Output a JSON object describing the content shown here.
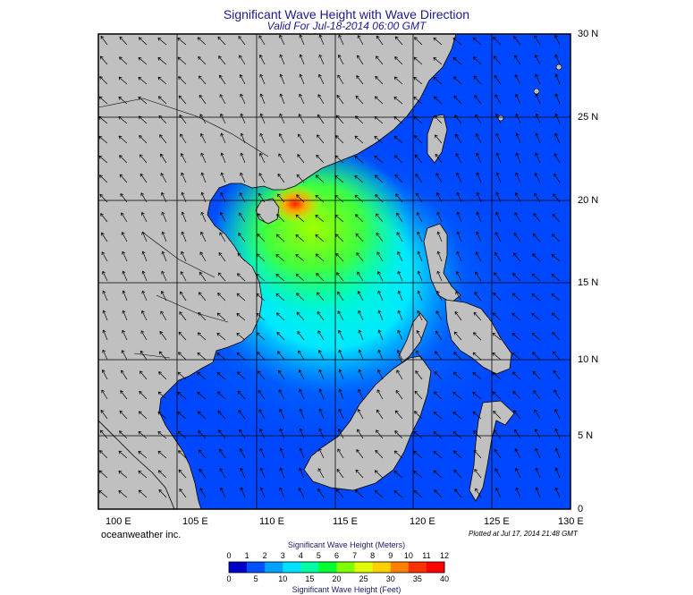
{
  "title": "Significant Wave Height with Wave Direction",
  "subtitle": "Valid For Jul-18-2014 06:00 GMT",
  "lon_labels": [
    "100 E",
    "105 E",
    "110 E",
    "115 E",
    "120 E",
    "125 E",
    "130 E"
  ],
  "lat_labels": [
    "30 N",
    "25 N",
    "20 N",
    "15 N",
    "10 N",
    "5 N",
    "0"
  ],
  "brand": "oceanweather inc.",
  "plotted": "Plotted at Jul 17, 2014 21:48 GMT",
  "colorbar": {
    "meters_title": "Significant Wave Height (Meters)",
    "feet_title": "Significant Wave Height (Feet)",
    "meters_ticks": [
      "0",
      "1",
      "2",
      "3",
      "4",
      "5",
      "6",
      "7",
      "8",
      "9",
      "10",
      "11",
      "12"
    ],
    "feet_ticks": [
      "0",
      "5",
      "10",
      "15",
      "20",
      "25",
      "30",
      "35",
      "40"
    ],
    "colors": [
      "#0000c8",
      "#0050ff",
      "#00a0ff",
      "#00e0ff",
      "#00ffa0",
      "#00ff30",
      "#80ff00",
      "#e0ff00",
      "#ffd000",
      "#ff8000",
      "#ff3000",
      "#ff0000"
    ]
  },
  "colors": {
    "land": "#c0c0c0",
    "deep_sea": "#0048ff",
    "title": "#1a1a8a"
  }
}
